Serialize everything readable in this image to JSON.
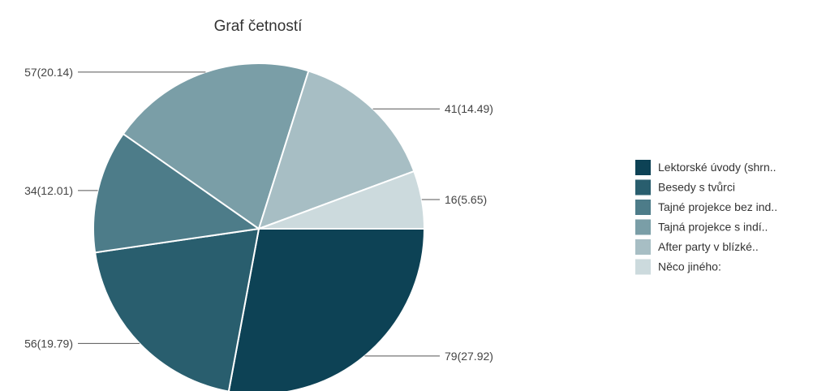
{
  "chart_data": {
    "type": "pie",
    "title": "Graf četností",
    "legend_position": "right",
    "labels": [
      "Lektorské úvody (shrn..",
      "Besedy s tvůrci",
      "Tajné projekce bez ind..",
      "Tajná projekce s indí..",
      " After party v blízké..",
      "Něco jiného:"
    ],
    "values": [
      79,
      56,
      34,
      57,
      41,
      16
    ],
    "percentages": [
      27.92,
      19.79,
      12.01,
      20.14,
      14.49,
      5.65
    ],
    "data_labels": [
      "79(27.92)",
      "56(19.79)",
      "34(12.01)",
      "57(20.14)",
      "41(14.49)",
      "16(5.65)"
    ],
    "colors": [
      "#0d4255",
      "#295e6e",
      "#4d7c89",
      "#7a9ea7",
      "#a7bec4",
      "#ccdadd"
    ]
  }
}
